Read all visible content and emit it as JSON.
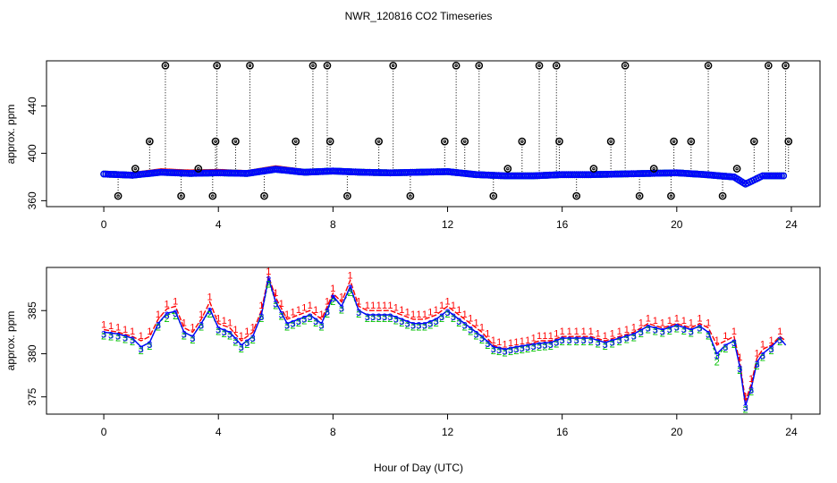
{
  "chart_data": {
    "title": "NWR_120816  CO2 Timeseries",
    "xlabel": "Hour of Day (UTC)",
    "panels": [
      {
        "type": "scatter",
        "ylabel": "approx. ppm",
        "xlim": [
          -2,
          25
        ],
        "ylim": [
          355,
          478
        ],
        "x_ticks": [
          0,
          4,
          8,
          12,
          16,
          20,
          24
        ],
        "y_ticks": [
          360,
          400,
          440
        ],
        "series": [
          {
            "name": "1",
            "color": "#ff0000",
            "style": "points-and-lines",
            "x": [
              0,
              1,
              2,
              3,
              4,
              5,
              6,
              7,
              8,
              9,
              10,
              11,
              12,
              13,
              14,
              15,
              16,
              17,
              18,
              19,
              20,
              21,
              22,
              22.4,
              23,
              23.8
            ],
            "y": [
              382.5,
              381.5,
              384.5,
              383.5,
              384,
              383,
              387,
              384,
              385,
              384,
              383.5,
              384,
              384.5,
              382,
              381,
              381,
              382,
              382,
              382.5,
              383,
              383.5,
              382,
              380,
              374,
              381,
              381
            ]
          },
          {
            "name": "2",
            "color": "#00c000",
            "style": "points-and-lines",
            "x": [
              0,
              1,
              2,
              3,
              4,
              5,
              6,
              7,
              8,
              9,
              10,
              11,
              12,
              13,
              14,
              15,
              16,
              17,
              18,
              19,
              20,
              21,
              22,
              22.4,
              23,
              23.8
            ],
            "y": [
              382.5,
              381.5,
              384,
              383,
              383.5,
              383,
              386.5,
              384,
              385,
              384,
              383.5,
              384,
              384.5,
              382,
              381,
              381,
              382,
              382,
              382.5,
              383,
              383.5,
              382,
              380,
              374,
              381,
              381
            ]
          },
          {
            "name": "3",
            "color": "#0000ff",
            "style": "points-and-lines",
            "x": [
              0,
              1,
              2,
              3,
              4,
              5,
              6,
              7,
              8,
              9,
              10,
              11,
              12,
              13,
              14,
              15,
              16,
              17,
              18,
              19,
              20,
              21,
              22,
              22.4,
              23,
              23.8
            ],
            "y": [
              382.5,
              381.5,
              384,
              383,
              383.5,
              383,
              386.5,
              384,
              385,
              384,
              383.5,
              384,
              384.5,
              382,
              381,
              381,
              382,
              382,
              382.5,
              383,
              383.5,
              382,
              380,
              374,
              381,
              381
            ]
          },
          {
            "name": "spikes",
            "color": "#000000",
            "style": "open-circles-with-dotted-drop-lines",
            "x": [
              0.5,
              1.1,
              1.6,
              2.15,
              2.7,
              3.3,
              3.8,
              3.9,
              3.95,
              4.6,
              5.1,
              5.6,
              6.7,
              7.3,
              7.8,
              7.9,
              8.5,
              9.6,
              10.1,
              10.7,
              11.9,
              12.3,
              12.6,
              13.1,
              13.6,
              14.1,
              14.6,
              15.2,
              15.8,
              15.9,
              16.5,
              17.1,
              17.7,
              18.2,
              18.7,
              19.2,
              19.8,
              19.9,
              20.5,
              21.1,
              21.6,
              22.1,
              22.7,
              23.2,
              23.8,
              23.9
            ],
            "y": [
              364,
              387,
              410,
              474,
              364,
              387,
              364,
              410,
              474,
              410,
              474,
              364,
              410,
              474,
              474,
              410,
              364,
              410,
              474,
              364,
              410,
              474,
              410,
              474,
              364,
              387,
              410,
              474,
              474,
              410,
              364,
              387,
              410,
              474,
              364,
              387,
              364,
              410,
              410,
              474,
              364,
              387,
              410,
              474,
              474,
              410
            ]
          }
        ]
      },
      {
        "type": "line",
        "ylabel": "approx. ppm",
        "xlim": [
          -2,
          25
        ],
        "ylim": [
          373,
          390
        ],
        "x_ticks": [
          0,
          4,
          8,
          12,
          16,
          20,
          24
        ],
        "y_ticks": [
          375,
          380,
          385
        ],
        "series": [
          {
            "name": "1",
            "color": "#ff0000",
            "x": [
              0.0,
              0.5,
              1.0,
              1.3,
              1.6,
              1.9,
              2.2,
              2.5,
              2.8,
              3.1,
              3.4,
              3.7,
              4.0,
              4.4,
              4.8,
              5.2,
              5.5,
              5.75,
              6.0,
              6.4,
              6.8,
              7.2,
              7.6,
              8.0,
              8.3,
              8.6,
              8.9,
              9.2,
              9.6,
              10.0,
              10.4,
              10.8,
              11.2,
              11.6,
              12.0,
              12.4,
              12.8,
              13.2,
              13.6,
              14.0,
              14.4,
              14.8,
              15.2,
              15.6,
              16.0,
              16.5,
              17.0,
              17.5,
              18.0,
              18.5,
              19.0,
              19.5,
              20.0,
              20.5,
              20.8,
              21.1,
              21.4,
              21.7,
              22.0,
              22.2,
              22.4,
              22.6,
              22.8,
              23.0,
              23.3,
              23.6,
              23.8
            ],
            "y": [
              382.8,
              382.5,
              382.0,
              381.5,
              382.0,
              384.0,
              385.2,
              385.5,
              383.0,
              382.5,
              384.0,
              386.0,
              383.5,
              383.0,
              381.5,
              382.5,
              385.0,
              389.0,
              386.5,
              384.0,
              384.5,
              385.0,
              384.0,
              387.0,
              386.0,
              388.5,
              385.5,
              385.0,
              385.0,
              385.0,
              384.5,
              384.0,
              384.0,
              384.5,
              385.5,
              384.5,
              383.5,
              382.5,
              381.0,
              380.5,
              380.8,
              381.0,
              381.5,
              381.5,
              382.0,
              382.0,
              382.0,
              381.5,
              382.0,
              382.5,
              383.5,
              383.0,
              383.5,
              383.0,
              383.5,
              383.0,
              381.0,
              381.5,
              382.0,
              379.0,
              374.5,
              376.5,
              379.5,
              380.5,
              381.0,
              382.0,
              381.5
            ]
          },
          {
            "name": "2",
            "color": "#00c000",
            "x": [
              0.0,
              0.5,
              1.0,
              1.3,
              1.6,
              1.9,
              2.2,
              2.5,
              2.8,
              3.1,
              3.4,
              3.7,
              4.0,
              4.4,
              4.8,
              5.2,
              5.5,
              5.75,
              6.0,
              6.4,
              6.8,
              7.2,
              7.6,
              8.0,
              8.3,
              8.6,
              8.9,
              9.2,
              9.6,
              10.0,
              10.4,
              10.8,
              11.2,
              11.6,
              12.0,
              12.4,
              12.8,
              13.2,
              13.6,
              14.0,
              14.4,
              14.8,
              15.2,
              15.6,
              16.0,
              16.5,
              17.0,
              17.5,
              18.0,
              18.5,
              19.0,
              19.5,
              20.0,
              20.5,
              20.8,
              21.1,
              21.4,
              21.7,
              22.0,
              22.2,
              22.4,
              22.6,
              22.8,
              23.0,
              23.3,
              23.6,
              23.8
            ],
            "y": [
              382.5,
              382.3,
              381.8,
              380.8,
              381.3,
              383.5,
              384.5,
              384.8,
              382.5,
              382.0,
              383.5,
              385.0,
              383.0,
              382.5,
              381.0,
              382.0,
              384.5,
              388.5,
              386.0,
              383.5,
              384.0,
              384.5,
              383.5,
              386.5,
              385.5,
              387.5,
              385.0,
              384.5,
              384.5,
              384.5,
              384.0,
              383.5,
              383.5,
              384.0,
              385.0,
              384.0,
              383.0,
              382.0,
              380.8,
              380.5,
              380.8,
              381.0,
              381.2,
              381.3,
              381.8,
              381.8,
              381.8,
              381.3,
              381.8,
              382.3,
              383.2,
              382.8,
              383.3,
              382.8,
              383.2,
              382.5,
              379.5,
              381.0,
              381.5,
              378.5,
              374.0,
              376.0,
              379.0,
              380.0,
              380.8,
              381.8,
              381.0
            ]
          },
          {
            "name": "3",
            "color": "#0000ff",
            "x": [
              0.0,
              0.5,
              1.0,
              1.3,
              1.6,
              1.9,
              2.2,
              2.5,
              2.8,
              3.1,
              3.4,
              3.7,
              4.0,
              4.4,
              4.8,
              5.2,
              5.5,
              5.75,
              6.0,
              6.4,
              6.8,
              7.2,
              7.6,
              8.0,
              8.3,
              8.6,
              8.9,
              9.2,
              9.6,
              10.0,
              10.4,
              10.8,
              11.2,
              11.6,
              12.0,
              12.4,
              12.8,
              13.2,
              13.6,
              14.0,
              14.4,
              14.8,
              15.2,
              15.6,
              16.0,
              16.5,
              17.0,
              17.5,
              18.0,
              18.5,
              19.0,
              19.5,
              20.0,
              20.5,
              20.8,
              21.1,
              21.4,
              21.7,
              22.0,
              22.2,
              22.4,
              22.6,
              22.8,
              23.0,
              23.3,
              23.6,
              23.8
            ],
            "y": [
              382.5,
              382.3,
              381.8,
              380.8,
              381.3,
              383.5,
              384.7,
              384.9,
              382.5,
              382.0,
              383.5,
              385.2,
              383.0,
              382.5,
              381.0,
              382.0,
              384.5,
              388.8,
              386.0,
              383.5,
              384.0,
              384.5,
              383.5,
              386.7,
              385.5,
              387.8,
              385.0,
              384.5,
              384.5,
              384.5,
              384.0,
              383.5,
              383.5,
              384.0,
              385.0,
              384.0,
              383.0,
              382.0,
              380.8,
              380.5,
              380.8,
              381.0,
              381.2,
              381.3,
              381.8,
              381.8,
              381.8,
              381.3,
              381.8,
              382.3,
              383.2,
              382.8,
              383.3,
              382.8,
              383.2,
              382.5,
              380.0,
              381.0,
              381.5,
              378.5,
              374.0,
              376.0,
              379.0,
              380.0,
              380.8,
              381.8,
              381.0
            ]
          }
        ]
      }
    ]
  }
}
